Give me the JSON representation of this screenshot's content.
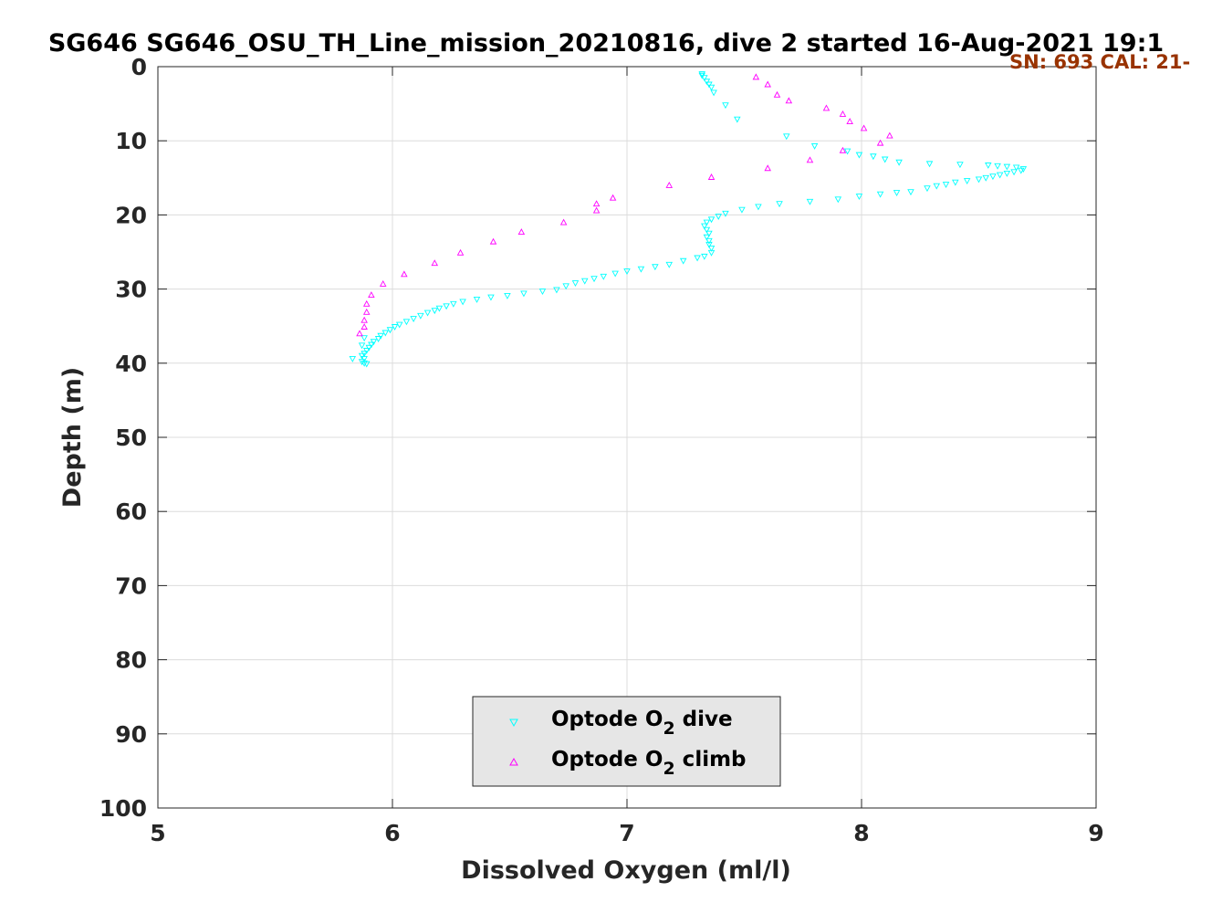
{
  "chart_data": {
    "type": "scatter",
    "title": "SG646 SG646_OSU_TH_Line_mission_20210816, dive 2 started 16-Aug-2021 19:1",
    "subtitle": "SN: 693  CAL: 21-",
    "xlabel": "Dissolved Oxygen (ml/l)",
    "ylabel": "Depth (m)",
    "xlim": [
      5,
      9
    ],
    "ylim": [
      0,
      100
    ],
    "y_reversed": true,
    "grid": true,
    "xticks": [
      "5",
      "6",
      "7",
      "8",
      "9"
    ],
    "yticks": [
      "0",
      "10",
      "20",
      "30",
      "40",
      "50",
      "60",
      "70",
      "80",
      "90",
      "100"
    ],
    "legend_position": "bottom-center",
    "series": [
      {
        "name": "Optode O",
        "name_sub": "2",
        "name_suffix": " dive",
        "color": "#00ffff",
        "marker": "triangle-down",
        "points": [
          [
            7.32,
            1.0
          ],
          [
            7.32,
            1.2
          ],
          [
            7.33,
            1.5
          ],
          [
            7.34,
            2.0
          ],
          [
            7.35,
            2.4
          ],
          [
            7.36,
            2.8
          ],
          [
            7.37,
            3.5
          ],
          [
            7.42,
            5.2
          ],
          [
            7.47,
            7.1
          ],
          [
            7.68,
            9.4
          ],
          [
            7.8,
            10.7
          ],
          [
            7.94,
            11.4
          ],
          [
            7.99,
            11.9
          ],
          [
            8.05,
            12.1
          ],
          [
            8.1,
            12.5
          ],
          [
            8.16,
            12.9
          ],
          [
            8.29,
            13.1
          ],
          [
            8.42,
            13.2
          ],
          [
            8.54,
            13.3
          ],
          [
            8.58,
            13.4
          ],
          [
            8.62,
            13.5
          ],
          [
            8.66,
            13.6
          ],
          [
            8.69,
            13.8
          ],
          [
            8.68,
            14.0
          ],
          [
            8.65,
            14.2
          ],
          [
            8.62,
            14.4
          ],
          [
            8.59,
            14.6
          ],
          [
            8.56,
            14.8
          ],
          [
            8.53,
            15.0
          ],
          [
            8.5,
            15.2
          ],
          [
            8.45,
            15.4
          ],
          [
            8.4,
            15.6
          ],
          [
            8.36,
            15.9
          ],
          [
            8.32,
            16.1
          ],
          [
            8.28,
            16.4
          ],
          [
            8.21,
            16.9
          ],
          [
            8.15,
            17.0
          ],
          [
            8.08,
            17.2
          ],
          [
            7.99,
            17.5
          ],
          [
            7.9,
            17.9
          ],
          [
            7.78,
            18.2
          ],
          [
            7.65,
            18.5
          ],
          [
            7.56,
            18.9
          ],
          [
            7.49,
            19.3
          ],
          [
            7.42,
            19.8
          ],
          [
            7.39,
            20.2
          ],
          [
            7.36,
            20.6
          ],
          [
            7.34,
            21.0
          ],
          [
            7.33,
            21.5
          ],
          [
            7.34,
            22.0
          ],
          [
            7.35,
            22.5
          ],
          [
            7.34,
            23.0
          ],
          [
            7.35,
            23.5
          ],
          [
            7.35,
            24.0
          ],
          [
            7.36,
            24.5
          ],
          [
            7.36,
            25.1
          ],
          [
            7.33,
            25.6
          ],
          [
            7.3,
            25.8
          ],
          [
            7.24,
            26.2
          ],
          [
            7.18,
            26.7
          ],
          [
            7.12,
            27.0
          ],
          [
            7.06,
            27.3
          ],
          [
            7.0,
            27.6
          ],
          [
            6.95,
            27.9
          ],
          [
            6.9,
            28.3
          ],
          [
            6.86,
            28.6
          ],
          [
            6.82,
            28.9
          ],
          [
            6.78,
            29.2
          ],
          [
            6.74,
            29.6
          ],
          [
            6.7,
            30.1
          ],
          [
            6.64,
            30.3
          ],
          [
            6.56,
            30.6
          ],
          [
            6.49,
            30.9
          ],
          [
            6.42,
            31.1
          ],
          [
            6.36,
            31.4
          ],
          [
            6.3,
            31.7
          ],
          [
            6.26,
            32.0
          ],
          [
            6.23,
            32.3
          ],
          [
            6.2,
            32.6
          ],
          [
            6.18,
            32.9
          ],
          [
            6.15,
            33.2
          ],
          [
            6.12,
            33.6
          ],
          [
            6.09,
            34.0
          ],
          [
            6.06,
            34.4
          ],
          [
            6.03,
            34.8
          ],
          [
            6.01,
            35.1
          ],
          [
            5.99,
            35.5
          ],
          [
            5.97,
            35.9
          ],
          [
            5.95,
            36.3
          ],
          [
            5.94,
            36.7
          ],
          [
            5.92,
            37.1
          ],
          [
            5.91,
            37.5
          ],
          [
            5.9,
            37.9
          ],
          [
            5.89,
            38.3
          ],
          [
            5.88,
            38.7
          ],
          [
            5.87,
            39.0
          ],
          [
            5.88,
            39.4
          ],
          [
            5.87,
            39.8
          ],
          [
            5.88,
            40.0
          ],
          [
            5.89,
            40.1
          ],
          [
            5.83,
            39.4
          ],
          [
            5.88,
            36.6
          ],
          [
            5.87,
            37.6
          ]
        ]
      },
      {
        "name": "Optode O",
        "name_sub": "2",
        "name_suffix": " climb",
        "color": "#ff00ff",
        "marker": "triangle-up",
        "points": [
          [
            7.55,
            1.4
          ],
          [
            7.6,
            2.4
          ],
          [
            7.64,
            3.8
          ],
          [
            7.69,
            4.6
          ],
          [
            7.85,
            5.6
          ],
          [
            7.92,
            6.4
          ],
          [
            7.95,
            7.4
          ],
          [
            8.01,
            8.3
          ],
          [
            8.12,
            9.3
          ],
          [
            8.08,
            10.3
          ],
          [
            7.92,
            11.3
          ],
          [
            7.78,
            12.6
          ],
          [
            7.6,
            13.7
          ],
          [
            7.36,
            14.9
          ],
          [
            7.18,
            16.0
          ],
          [
            6.94,
            17.7
          ],
          [
            6.87,
            18.5
          ],
          [
            6.87,
            19.4
          ],
          [
            6.73,
            21.0
          ],
          [
            6.55,
            22.3
          ],
          [
            6.43,
            23.6
          ],
          [
            6.29,
            25.1
          ],
          [
            6.18,
            26.5
          ],
          [
            6.05,
            28.0
          ],
          [
            5.96,
            29.3
          ],
          [
            5.91,
            30.8
          ],
          [
            5.89,
            32.0
          ],
          [
            5.89,
            33.1
          ],
          [
            5.88,
            34.2
          ],
          [
            5.88,
            35.1
          ],
          [
            5.86,
            36.0
          ]
        ]
      }
    ]
  }
}
